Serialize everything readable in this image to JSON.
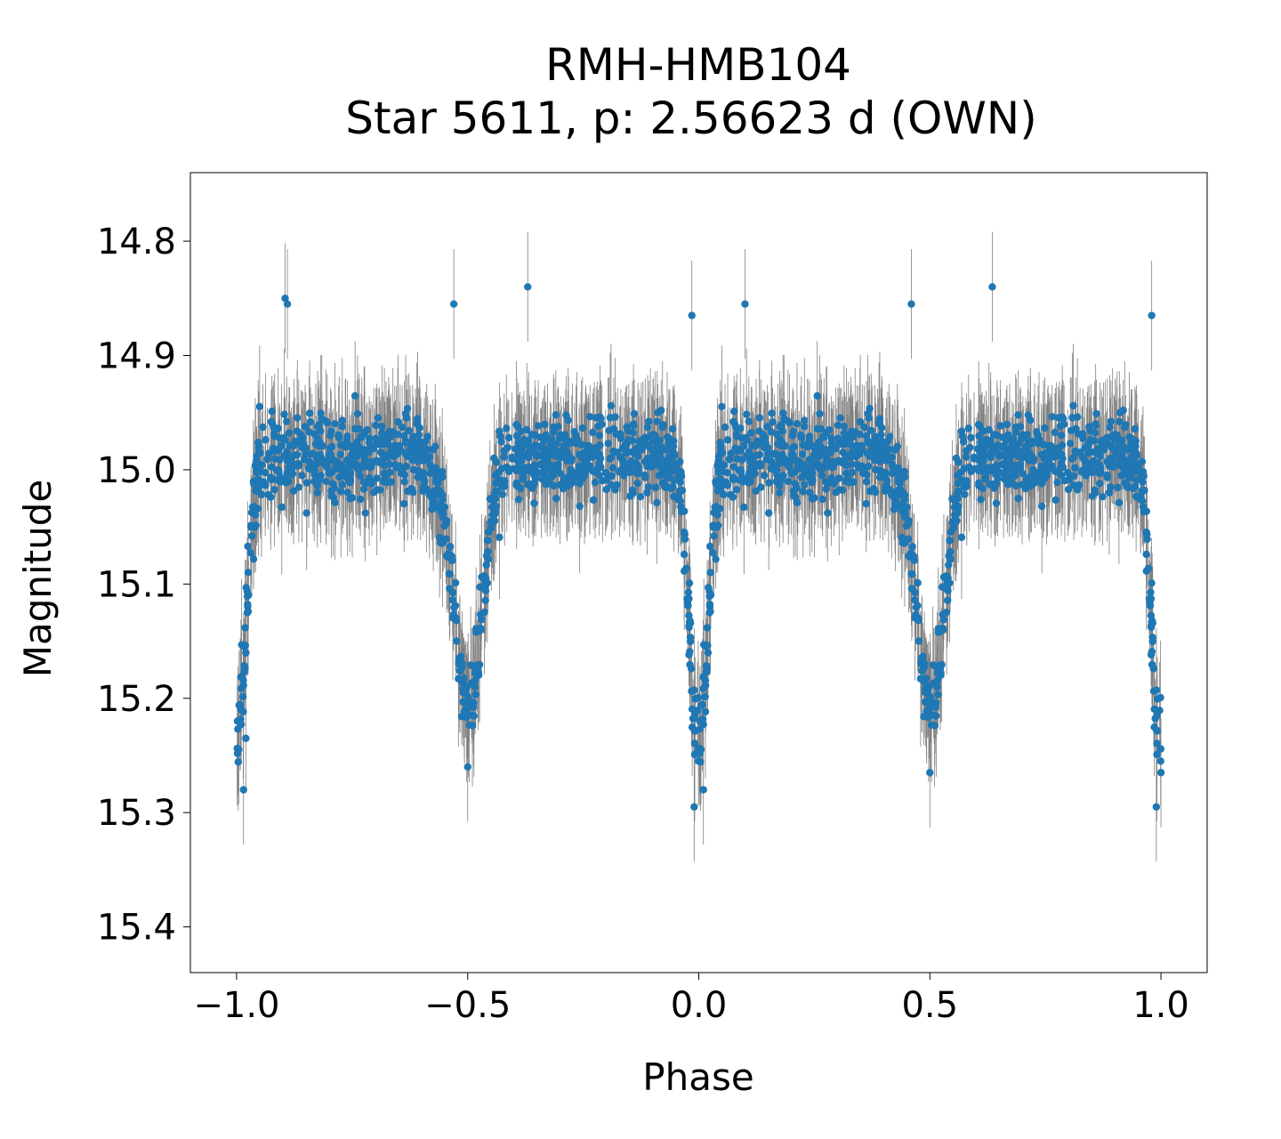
{
  "chart_data": {
    "type": "scatter",
    "title": "RMH-HMB104",
    "subtitle": "Star 5611, p: 2.56623 d (OWN)",
    "xlabel": "Phase",
    "ylabel": "Magnitude",
    "xlim": [
      -1.1,
      1.1
    ],
    "ylim": [
      15.44,
      14.74
    ],
    "y_inverted": true,
    "x_ticks": [
      -1.0,
      -0.5,
      0.0,
      0.5,
      1.0
    ],
    "x_tick_labels": [
      "−1.0",
      "−0.5",
      "0.0",
      "0.5",
      "1.0"
    ],
    "y_ticks": [
      14.8,
      14.9,
      15.0,
      15.1,
      15.2,
      15.3,
      15.4
    ],
    "y_tick_labels": [
      "14.8",
      "14.9",
      "15.0",
      "15.1",
      "15.2",
      "15.3",
      "15.4"
    ],
    "grid": false,
    "legend": "none",
    "marker_color": "#1f77b4",
    "errorbar_color": "#808080",
    "light_curve_profile": {
      "baseline_mag": 14.99,
      "primary_eclipse": {
        "phase": 0.0,
        "depth_mag": 0.25,
        "halfwidth": 0.028
      },
      "secondary_eclipse": {
        "phase": 0.5,
        "depth_mag": 0.21,
        "halfwidth": 0.045
      },
      "scatter_mag": 0.03,
      "typical_error_mag": 0.04,
      "points_per_cycle": 1100,
      "phase_range": [
        -1.0,
        1.0
      ]
    },
    "highlighted_points": [
      {
        "x": -0.99,
        "y": 15.21
      },
      {
        "x": -0.985,
        "y": 15.28
      },
      {
        "x": -0.98,
        "y": 15.235
      },
      {
        "x": -0.895,
        "y": 14.85
      },
      {
        "x": -0.89,
        "y": 14.855
      },
      {
        "x": -0.53,
        "y": 14.855
      },
      {
        "x": -0.5,
        "y": 15.26
      },
      {
        "x": -0.37,
        "y": 14.84
      },
      {
        "x": -0.01,
        "y": 15.295
      },
      {
        "x": 0.01,
        "y": 15.28
      },
      {
        "x": -0.015,
        "y": 14.865
      },
      {
        "x": 0.1,
        "y": 14.855
      },
      {
        "x": 0.5,
        "y": 15.265
      },
      {
        "x": 0.635,
        "y": 14.84
      },
      {
        "x": 0.98,
        "y": 14.865
      },
      {
        "x": 0.99,
        "y": 15.295
      },
      {
        "x": 1.0,
        "y": 15.265
      },
      {
        "x": 0.46,
        "y": 14.855
      }
    ]
  }
}
